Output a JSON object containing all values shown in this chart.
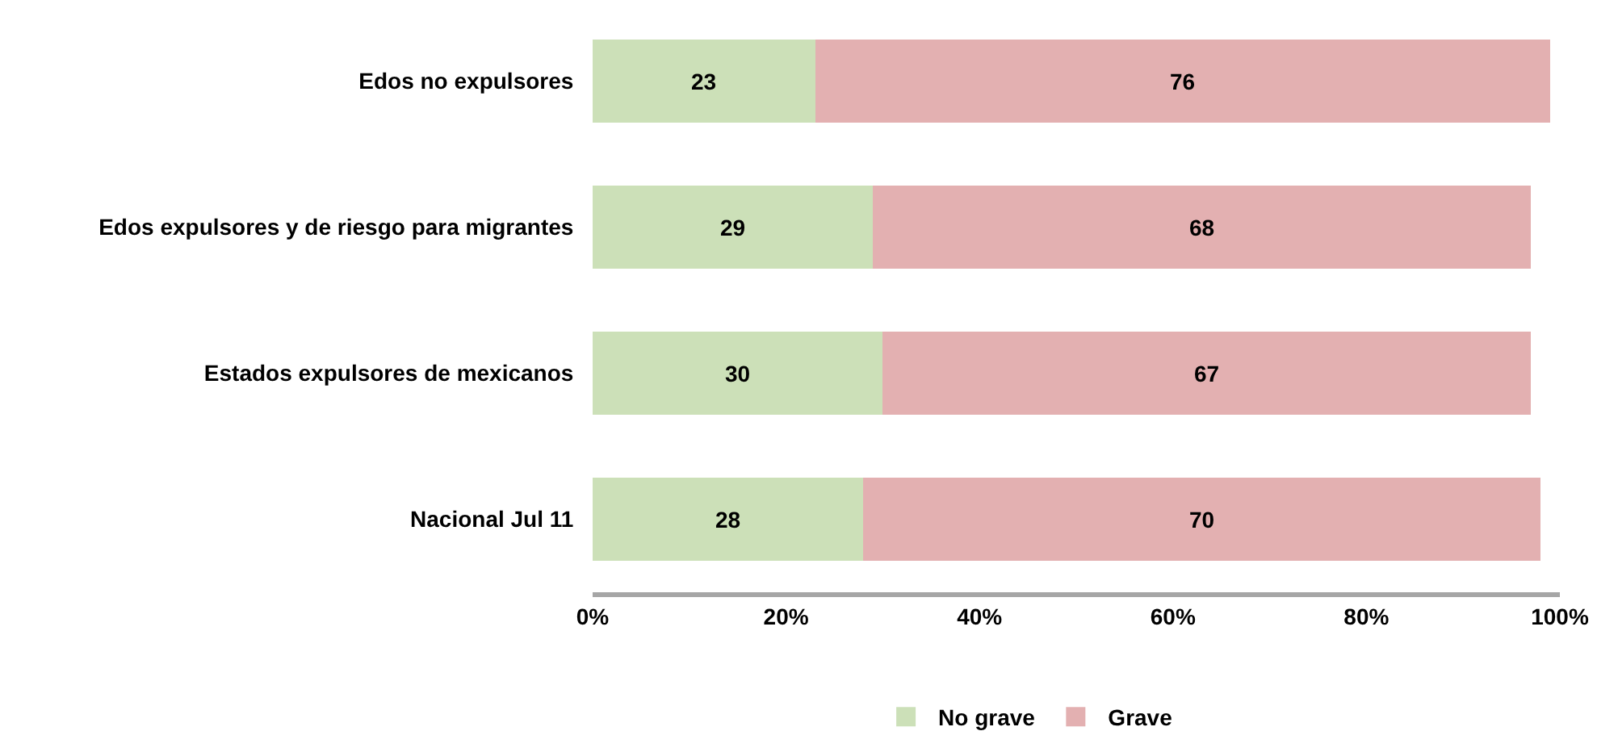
{
  "chart_data": {
    "type": "bar",
    "orientation": "horizontal",
    "stacked": true,
    "data_labels": true,
    "categories": [
      "Edos no expulsores",
      "Edos expulsores y de riesgo para migrantes",
      "Estados expulsores de mexicanos",
      "Nacional Jul 11"
    ],
    "series": [
      {
        "name": "No grave",
        "color": "#cce0b8",
        "values": [
          23,
          29,
          30,
          28
        ]
      },
      {
        "name": "Grave",
        "color": "#e3b0b1",
        "values": [
          76,
          68,
          67,
          70
        ]
      }
    ],
    "xlim": [
      0,
      100
    ],
    "xticks": [
      {
        "value": 0,
        "label": "0%"
      },
      {
        "value": 20,
        "label": "20%"
      },
      {
        "value": 40,
        "label": "40%"
      },
      {
        "value": 60,
        "label": "60%"
      },
      {
        "value": 80,
        "label": "80%"
      },
      {
        "value": 100,
        "label": "100%"
      }
    ],
    "legend": "bottom"
  }
}
